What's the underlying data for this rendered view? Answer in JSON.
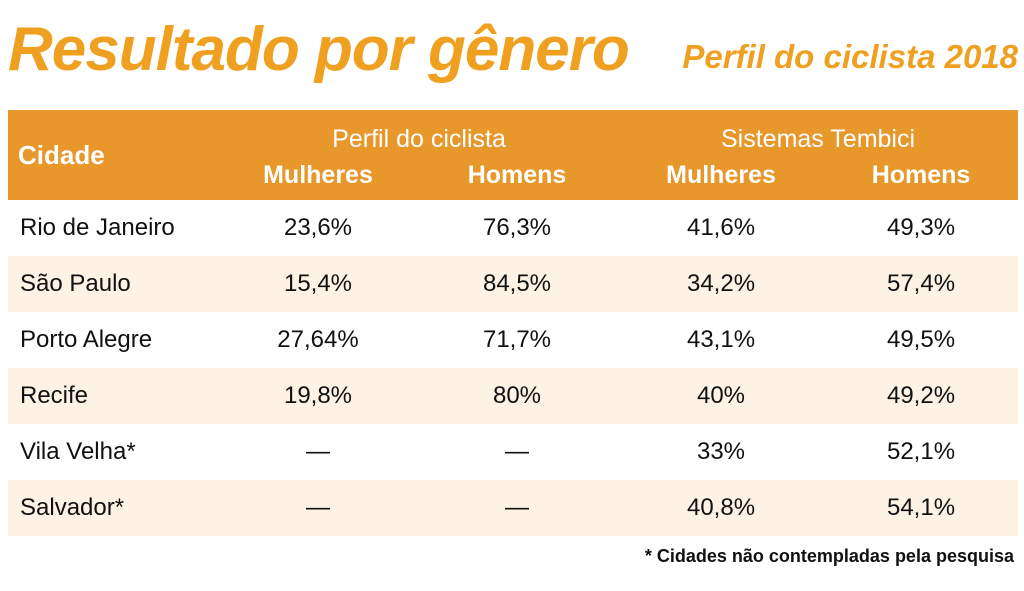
{
  "title": "Resultado por gênero",
  "subtitle": "Perfil do ciclista 2018",
  "chart_data": {
    "type": "table",
    "title": "Resultado por gênero",
    "subtitle": "Perfil do ciclista 2018",
    "header": {
      "city": "Cidade",
      "group1": "Perfil do ciclista",
      "group2": "Sistemas Tembici",
      "sub": [
        "Mulheres",
        "Homens",
        "Mulheres",
        "Homens"
      ]
    },
    "rows": [
      {
        "city": "Rio de Janeiro",
        "values": [
          "23,6%",
          "76,3%",
          "41,6%",
          "49,3%"
        ]
      },
      {
        "city": "São Paulo",
        "values": [
          "15,4%",
          "84,5%",
          "34,2%",
          "57,4%"
        ]
      },
      {
        "city": "Porto Alegre",
        "values": [
          "27,64%",
          "71,7%",
          "43,1%",
          "49,5%"
        ]
      },
      {
        "city": "Recife",
        "values": [
          "19,8%",
          "80%",
          "40%",
          "49,2%"
        ]
      },
      {
        "city": "Vila Velha*",
        "values": [
          "—",
          "—",
          "33%",
          "52,1%"
        ]
      },
      {
        "city": "Salvador*",
        "values": [
          "—",
          "—",
          "40,8%",
          "54,1%"
        ]
      }
    ]
  },
  "footnote": "* Cidades não contempladas pela pesquisa",
  "colors": {
    "accent": "#f0a020",
    "header_bg": "#e8972a",
    "stripe": "#fdf2e4"
  }
}
